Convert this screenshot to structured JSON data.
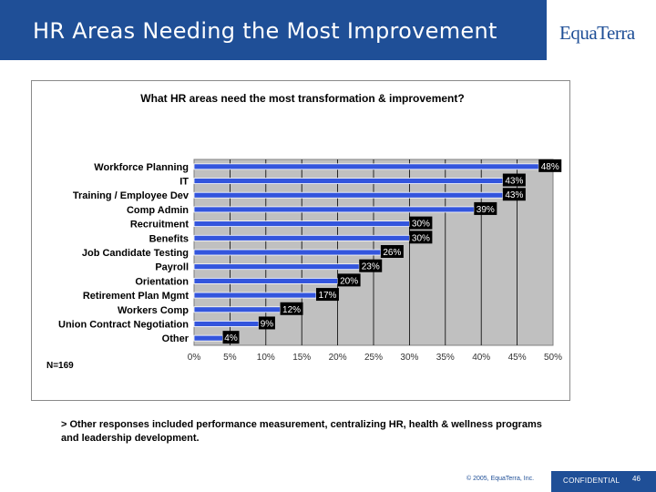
{
  "slide": {
    "title": "HR Areas Needing the Most Improvement",
    "logo_text": "EquaTerra",
    "footnote": "> Other responses included performance measurement, centralizing HR, health & wellness programs and leadership development.",
    "copyright": "© 2005, EquaTerra, Inc.",
    "confidential": "CONFIDENTIAL",
    "page_number": "46",
    "colors": {
      "brand_blue": "#1f4f97",
      "bar_fill": "#3355dd",
      "plot_bg": "#c0c0c0",
      "label_bg": "#000000"
    }
  },
  "chart_data": {
    "type": "bar",
    "orientation": "horizontal",
    "title": "What HR areas need the most transformation & improvement?",
    "categories": [
      "Workforce Planning",
      "IT",
      "Training / Employee Dev",
      "Comp Admin",
      "Recruitment",
      "Benefits",
      "Job Candidate Testing",
      "Payroll",
      "Orientation",
      "Retirement Plan Mgmt",
      "Workers Comp",
      "Union Contract Negotiation",
      "Other"
    ],
    "values": [
      48,
      43,
      43,
      39,
      30,
      30,
      26,
      23,
      20,
      17,
      12,
      9,
      4
    ],
    "value_labels": [
      "48%",
      "43%",
      "43%",
      "39%",
      "30%",
      "30%",
      "26%",
      "23%",
      "20%",
      "17%",
      "12%",
      "9%",
      "4%"
    ],
    "xlim": [
      0,
      50
    ],
    "xticks": [
      "0%",
      "5%",
      "10%",
      "15%",
      "20%",
      "25%",
      "30%",
      "35%",
      "40%",
      "45%",
      "50%"
    ],
    "grid": true,
    "annotation": "N=169"
  }
}
